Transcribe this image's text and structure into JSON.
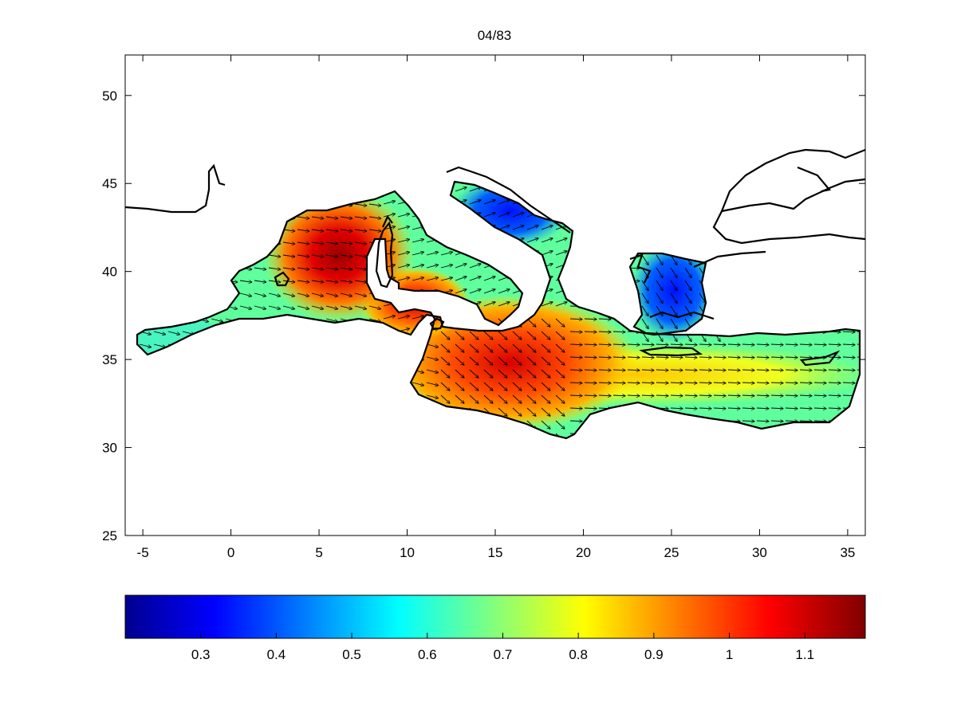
{
  "title": "04/83",
  "map": {
    "xticks": [
      -5,
      0,
      5,
      10,
      15,
      20,
      25,
      30,
      35
    ],
    "yticks": [
      25,
      30,
      35,
      40,
      45,
      50
    ],
    "xlim": [
      -6,
      36
    ],
    "ylim": [
      25,
      52.3
    ],
    "field_colormap": "jet",
    "vectors": "wind-arrows",
    "coastline_color": "#000000"
  },
  "colorbar": {
    "range": [
      0.2,
      1.18
    ],
    "ticks": [
      0.3,
      0.4,
      0.5,
      0.6,
      0.7,
      0.8,
      0.9,
      1,
      1.1
    ],
    "tick_labels": [
      "0.3",
      "0.4",
      "0.5",
      "0.6",
      "0.7",
      "0.8",
      "0.9",
      "1",
      "1.1"
    ]
  }
}
